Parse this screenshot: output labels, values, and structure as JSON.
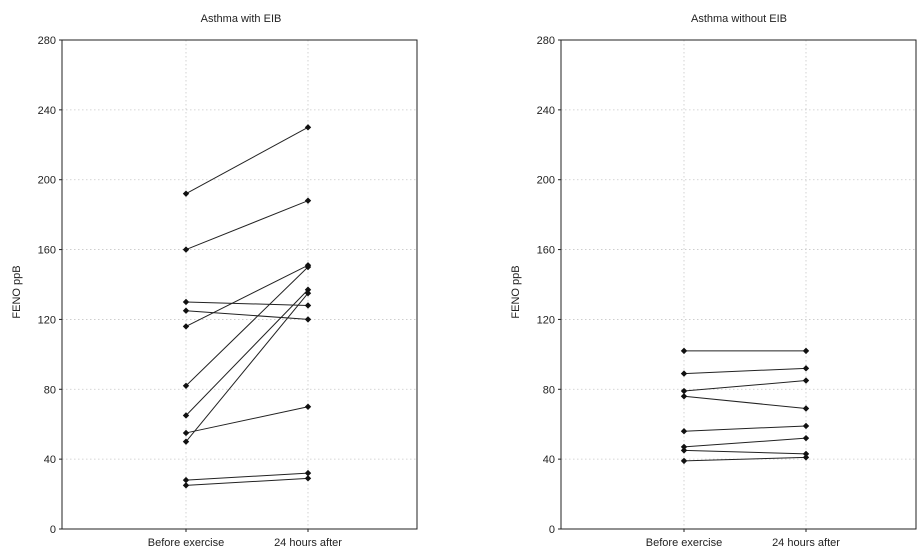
{
  "chart_data": [
    {
      "type": "line",
      "title": "Asthma with EIB",
      "ylabel": "FENO ppB",
      "xlabel": "",
      "categories": [
        "Before exercise",
        "24 hours after"
      ],
      "ylim": [
        0,
        280
      ],
      "yticks": [
        0,
        40,
        80,
        120,
        160,
        200,
        240,
        280
      ],
      "grid": true,
      "series": [
        {
          "values": [
            192,
            230
          ]
        },
        {
          "values": [
            160,
            188
          ]
        },
        {
          "values": [
            130,
            128
          ]
        },
        {
          "values": [
            125,
            120
          ]
        },
        {
          "values": [
            116,
            151
          ]
        },
        {
          "values": [
            82,
            150
          ]
        },
        {
          "values": [
            65,
            137
          ]
        },
        {
          "values": [
            55,
            70
          ]
        },
        {
          "values": [
            50,
            135
          ]
        },
        {
          "values": [
            28,
            32
          ]
        },
        {
          "values": [
            25,
            29
          ]
        }
      ]
    },
    {
      "type": "line",
      "title": "Asthma without EIB",
      "ylabel": "FENO ppB",
      "xlabel": "",
      "categories": [
        "Before exercise",
        "24 hours after"
      ],
      "ylim": [
        0,
        280
      ],
      "yticks": [
        0,
        40,
        80,
        120,
        160,
        200,
        240,
        280
      ],
      "grid": true,
      "series": [
        {
          "values": [
            102,
            102
          ]
        },
        {
          "values": [
            89,
            92
          ]
        },
        {
          "values": [
            79,
            85
          ]
        },
        {
          "values": [
            76,
            69
          ]
        },
        {
          "values": [
            56,
            59
          ]
        },
        {
          "values": [
            47,
            52
          ]
        },
        {
          "values": [
            45,
            43
          ]
        },
        {
          "values": [
            39,
            41
          ]
        }
      ]
    }
  ]
}
